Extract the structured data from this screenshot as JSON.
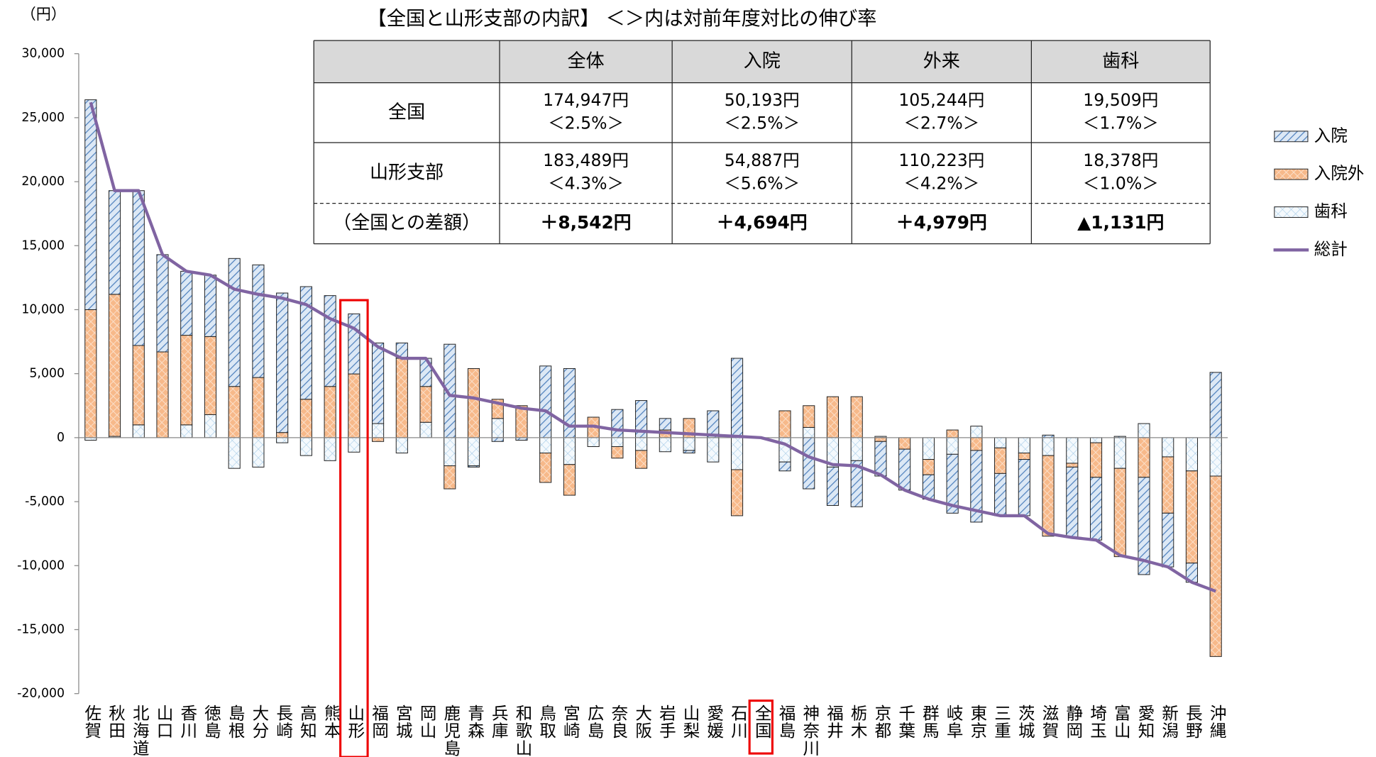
{
  "chart_data": {
    "type": "stacked_bar_line",
    "y_unit": "（円）",
    "categories": [
      "佐賀",
      "秋田",
      "北海道",
      "山口",
      "香川",
      "徳島",
      "島根",
      "大分",
      "長崎",
      "高知",
      "熊本",
      "山形",
      "福岡",
      "宮城",
      "岡山",
      "鹿児島",
      "青森",
      "兵庫",
      "和歌山",
      "鳥取",
      "宮崎",
      "広島",
      "奈良",
      "大阪",
      "岩手",
      "山梨",
      "愛媛",
      "石川",
      "全国",
      "福島",
      "神奈川",
      "福井",
      "栃木",
      "京都",
      "千葉",
      "群馬",
      "岐阜",
      "東京",
      "三重",
      "茨城",
      "滋賀",
      "静岡",
      "埼玉",
      "富山",
      "愛知",
      "新潟",
      "長野",
      "沖縄"
    ],
    "series": [
      {
        "name": "入院",
        "color": "#4f81bd",
        "values": [
          16400,
          8100,
          12100,
          7600,
          5000,
          4800,
          10000,
          8800,
          10900,
          8800,
          7100,
          4694,
          6300,
          1200,
          2200,
          7300,
          -100,
          -300,
          -200,
          5600,
          5400,
          0,
          2200,
          2900,
          900,
          -200,
          2100,
          6200,
          0,
          -700,
          -4000,
          -3000,
          -3600,
          -2700,
          -3200,
          -1900,
          -4600,
          -5600,
          -3300,
          -4400,
          200,
          -5500,
          -4900,
          100,
          -7600,
          -4200,
          -1500,
          5100
        ]
      },
      {
        "name": "入院外",
        "color": "#f79646",
        "values": [
          10000,
          11100,
          6200,
          6700,
          7000,
          6100,
          4000,
          4700,
          400,
          3000,
          4000,
          4979,
          -300,
          6200,
          2800,
          -1800,
          5400,
          1500,
          2500,
          -2300,
          -2400,
          1600,
          -900,
          -1400,
          600,
          1500,
          0,
          -3600,
          0,
          2100,
          1700,
          3200,
          3200,
          -300,
          -900,
          -1200,
          600,
          -1000,
          -2000,
          -500,
          -6300,
          -300,
          -2700,
          -6900,
          -3100,
          -4400,
          -7200,
          -14100
        ]
      },
      {
        "name": "歯科",
        "color": "#9bc3e6",
        "values": [
          -200,
          100,
          1000,
          0,
          1000,
          1800,
          -2400,
          -2300,
          -400,
          -1400,
          -1800,
          -1131,
          1100,
          -1200,
          1200,
          -2200,
          -2200,
          1500,
          0,
          -1200,
          -2100,
          -700,
          -700,
          -1000,
          -1100,
          -1000,
          -1900,
          -2500,
          0,
          -1900,
          800,
          -2300,
          -1800,
          100,
          0,
          -1700,
          -1300,
          900,
          -800,
          -1200,
          -1400,
          -2000,
          -400,
          -2400,
          1100,
          -1500,
          -2600,
          -3000
        ]
      },
      {
        "name": "総計",
        "color": "#8064a2",
        "type": "line",
        "values": [
          26200,
          19300,
          19300,
          14300,
          13000,
          12700,
          11600,
          11200,
          10900,
          10400,
          9300,
          8542,
          7100,
          6200,
          6200,
          3300,
          3100,
          2700,
          2300,
          2100,
          900,
          900,
          600,
          500,
          400,
          300,
          200,
          100,
          0,
          -500,
          -1500,
          -2100,
          -2200,
          -2900,
          -4100,
          -4800,
          -5300,
          -5700,
          -6100,
          -6100,
          -7500,
          -7800,
          -8000,
          -9200,
          -9600,
          -10100,
          -11300,
          -12000
        ]
      }
    ],
    "ylim": [
      -20000,
      30000
    ],
    "yticks": [
      {
        "value": 30000,
        "label": "30,000"
      },
      {
        "value": 25000,
        "label": "25,000"
      },
      {
        "value": 20000,
        "label": "20,000"
      },
      {
        "value": 15000,
        "label": "15,000"
      },
      {
        "value": 10000,
        "label": "10,000"
      },
      {
        "value": 5000,
        "label": "5,000"
      },
      0,
      {
        "value": -5000,
        "label": "-5,000"
      },
      {
        "value": -10000,
        "label": "-10,000"
      },
      {
        "value": -15000,
        "label": "-15,000"
      },
      {
        "value": -20000,
        "label": "-20,000"
      }
    ],
    "legend": "right",
    "grid": false
  },
  "table": {
    "title": "【全国と山形支部の内訳】 ＜＞内は対前年度対比の伸び率",
    "columns": [
      "全体",
      "入院",
      "外来",
      "歯科"
    ],
    "rows": [
      {
        "label": "全国",
        "cells": [
          [
            "174,947円",
            "＜2.5%＞"
          ],
          [
            "50,193円",
            "＜2.5%＞"
          ],
          [
            "105,244円",
            "＜2.7%＞"
          ],
          [
            "19,509円",
            "＜1.7%＞"
          ]
        ]
      },
      {
        "label": "山形支部",
        "cells": [
          [
            "183,489円",
            "＜4.3%＞"
          ],
          [
            "54,887円",
            "＜5.6%＞"
          ],
          [
            "110,223円",
            "＜4.2%＞"
          ],
          [
            "18,378円",
            "＜1.0%＞"
          ]
        ]
      },
      {
        "label": "（全国との差額）",
        "cells": [
          [
            "＋8,542円"
          ],
          [
            "＋4,694円"
          ],
          [
            "＋4,979円"
          ],
          [
            "▲1,131円"
          ]
        ]
      }
    ]
  }
}
